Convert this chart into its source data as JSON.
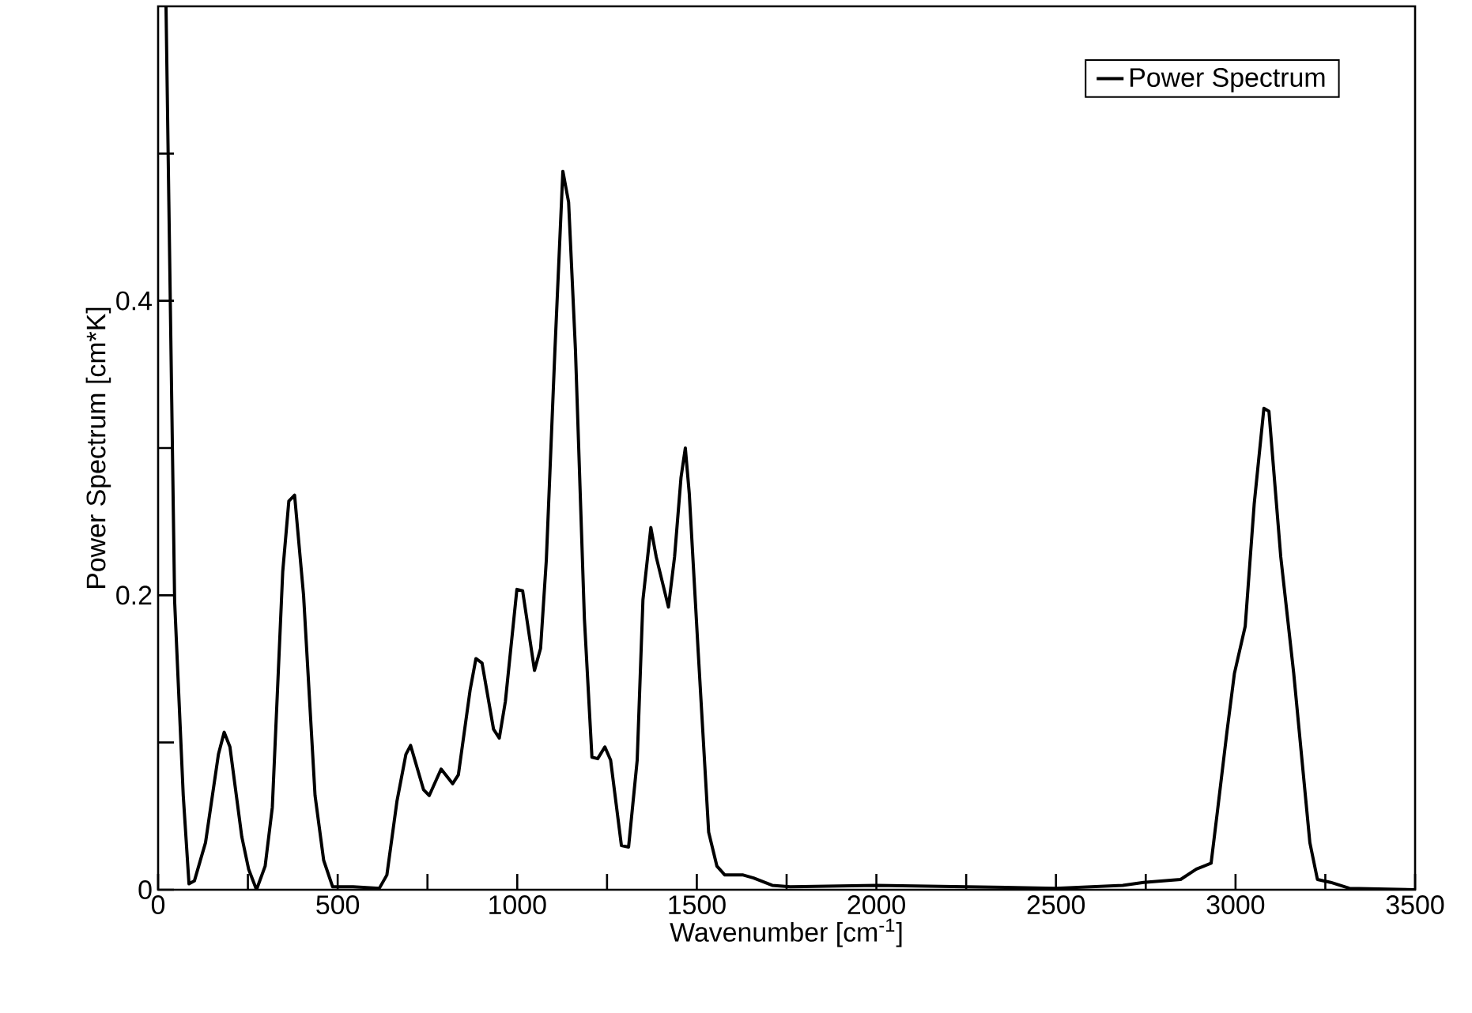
{
  "chart_data": {
    "type": "line",
    "xlabel": "Wavenumber [cm$^{-1}$]",
    "ylabel": "Power Spectrum [cm*K]",
    "x": [
      22,
      46,
      70,
      86,
      101,
      132,
      168,
      184,
      200,
      233,
      252,
      274,
      298,
      318,
      347,
      364,
      380,
      405,
      437,
      461,
      486,
      543,
      616,
      637,
      665,
      690,
      703,
      739,
      755,
      788,
      820,
      836,
      869,
      885,
      902,
      934,
      950,
      967,
      999,
      1015,
      1048,
      1065,
      1081,
      1105,
      1127,
      1143,
      1162,
      1187,
      1208,
      1224,
      1244,
      1260,
      1290,
      1310,
      1334,
      1350,
      1372,
      1387,
      1421,
      1438,
      1456,
      1468,
      1479,
      1504,
      1533,
      1556,
      1578,
      1629,
      1658,
      1710,
      1760,
      2000,
      2250,
      2500,
      2686,
      2744,
      2847,
      2891,
      2932,
      2950,
      2976,
      2997,
      3027,
      3052,
      3079,
      3093,
      3126,
      3162,
      3207,
      3228,
      3265,
      3317,
      3500
    ],
    "series": [
      {
        "name": "Power Spectrum",
        "color": "#000000",
        "values": [
          0.6,
          0.196,
          0.064,
          0.004,
          0.006,
          0.032,
          0.092,
          0.107,
          0.097,
          0.036,
          0.014,
          0.0,
          0.016,
          0.056,
          0.216,
          0.264,
          0.268,
          0.2,
          0.064,
          0.02,
          0.002,
          0.002,
          0.001,
          0.01,
          0.06,
          0.092,
          0.098,
          0.068,
          0.064,
          0.082,
          0.072,
          0.078,
          0.136,
          0.157,
          0.154,
          0.109,
          0.103,
          0.128,
          0.204,
          0.203,
          0.149,
          0.164,
          0.224,
          0.367,
          0.488,
          0.467,
          0.367,
          0.184,
          0.09,
          0.089,
          0.097,
          0.088,
          0.03,
          0.029,
          0.088,
          0.197,
          0.246,
          0.226,
          0.192,
          0.226,
          0.28,
          0.3,
          0.269,
          0.161,
          0.039,
          0.016,
          0.01,
          0.01,
          0.008,
          0.003,
          0.002,
          0.003,
          0.002,
          0.001,
          0.003,
          0.005,
          0.007,
          0.014,
          0.018,
          0.054,
          0.107,
          0.147,
          0.179,
          0.262,
          0.327,
          0.325,
          0.226,
          0.147,
          0.032,
          0.007,
          0.005,
          0.001,
          0.0
        ]
      }
    ],
    "xlim": [
      0,
      3500
    ],
    "ylim": [
      0,
      0.6
    ],
    "xticks": [
      0,
      {
        "value": 250,
        "label": null
      },
      500,
      {
        "value": 750,
        "label": null
      },
      1000,
      {
        "value": 1250,
        "label": null
      },
      1500,
      {
        "value": 1750,
        "label": null
      },
      2000,
      {
        "value": 2250,
        "label": null
      },
      2500,
      {
        "value": 2750,
        "label": null
      },
      3000,
      {
        "value": 3250,
        "label": null
      },
      3500
    ],
    "yticks": [
      0,
      {
        "value": 0.1,
        "label": null
      },
      0.2,
      {
        "value": 0.3,
        "label": null
      },
      0.4,
      {
        "value": 0.5,
        "label": null
      }
    ],
    "legend": "top right",
    "line_style": "solid"
  }
}
